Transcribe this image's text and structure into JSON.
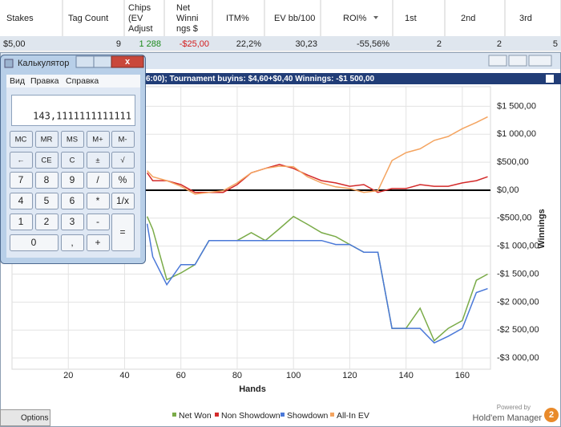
{
  "table": {
    "headers": [
      [
        "Stakes"
      ],
      [
        "Tag Count"
      ],
      [
        "Chips",
        "(EV",
        "Adjust"
      ],
      [
        "Net",
        "Winni",
        "ngs $"
      ],
      [
        "ITM%"
      ],
      [
        "EV bb/100"
      ],
      [
        "ROI%"
      ],
      [
        "1st"
      ],
      [
        "2nd"
      ],
      [
        "3rd"
      ]
    ],
    "rows": [
      [
        "$5,00",
        "9",
        "1 288",
        "-$25,00",
        "22,2%",
        "30,23",
        "-55,56%",
        "2",
        "2",
        "5"
      ]
    ]
  },
  "calculator": {
    "title": "Калькулятор",
    "menu": [
      "Вид",
      "Правка",
      "Справка"
    ],
    "display": "143,1111111111111",
    "buttons": [
      "MC",
      "MR",
      "MS",
      "M+",
      "M-",
      "←",
      "CE",
      "C",
      "±",
      "√",
      "7",
      "8",
      "9",
      "/",
      "%",
      "4",
      "5",
      "6",
      "*",
      "1/x",
      "1",
      "2",
      "3",
      "-",
      "=",
      "0",
      ",",
      "+"
    ]
  },
  "chart": {
    "type": "line",
    "title": "6:00); Tournament buyins: $4,60+$0,40  Winnings: -$1 500,00",
    "x_label": "Hands",
    "y_label": "Winnings",
    "x": [
      48,
      50,
      55,
      60,
      65,
      70,
      75,
      80,
      85,
      90,
      95,
      100,
      105,
      110,
      115,
      120,
      125,
      130,
      135,
      140,
      145,
      150,
      155,
      160,
      165,
      169
    ],
    "series": [
      {
        "name": "Net Won",
        "color": "#7aab48",
        "values": [
          -470,
          -700,
          -1600,
          -1480,
          -1330,
          -900,
          -900,
          -900,
          -760,
          -900,
          -690,
          -470,
          -610,
          -760,
          -830,
          -970,
          -1110,
          -1110,
          -2470,
          -2470,
          -2110,
          -2690,
          -2470,
          -2330,
          -1610,
          -1500
        ]
      },
      {
        "name": "Non Showdown",
        "color": "#d42a2a",
        "values": [
          310,
          170,
          170,
          100,
          -40,
          -40,
          -40,
          100,
          310,
          390,
          460,
          390,
          270,
          170,
          130,
          70,
          100,
          -40,
          30,
          30,
          100,
          70,
          70,
          130,
          170,
          240
        ]
      },
      {
        "name": "Showdown",
        "color": "#4a78d8",
        "values": [
          -600,
          -1190,
          -1690,
          -1330,
          -1330,
          -900,
          -900,
          -900,
          -900,
          -900,
          -900,
          -900,
          -900,
          -900,
          -970,
          -970,
          -1110,
          -1110,
          -2470,
          -2470,
          -2470,
          -2730,
          -2610,
          -2470,
          -1830,
          -1760
        ]
      },
      {
        "name": "All-In EV",
        "color": "#f4a460",
        "values": [
          350,
          240,
          170,
          70,
          -70,
          -40,
          -10,
          130,
          310,
          390,
          430,
          420,
          240,
          130,
          60,
          30,
          -40,
          -10,
          530,
          670,
          740,
          890,
          960,
          1100,
          1210,
          1310
        ]
      }
    ],
    "xlim": [
      0,
      170
    ],
    "ylim": [
      -3200,
      1850
    ],
    "xticks": [
      20,
      40,
      60,
      80,
      100,
      120,
      140,
      160
    ],
    "yticks": [
      {
        "value": 1500,
        "label": "$1 500,00"
      },
      {
        "value": 1000,
        "label": "$1 000,00"
      },
      {
        "value": 500,
        "label": "$500,00"
      },
      {
        "value": 0,
        "label": "$0,00"
      },
      {
        "value": -500,
        "label": "-$500,00"
      },
      {
        "value": -1000,
        "label": "-$1 000,00"
      },
      {
        "value": -1500,
        "label": "-$1 500,00"
      },
      {
        "value": -2000,
        "label": "-$2 000,00"
      },
      {
        "value": -2500,
        "label": "-$2 500,00"
      },
      {
        "value": -3000,
        "label": "-$3 000,00"
      }
    ],
    "grid": true
  },
  "footer": {
    "options": "Options",
    "powered_by": "Powered by",
    "brand": "Hold'em Manager",
    "badge": "2"
  }
}
